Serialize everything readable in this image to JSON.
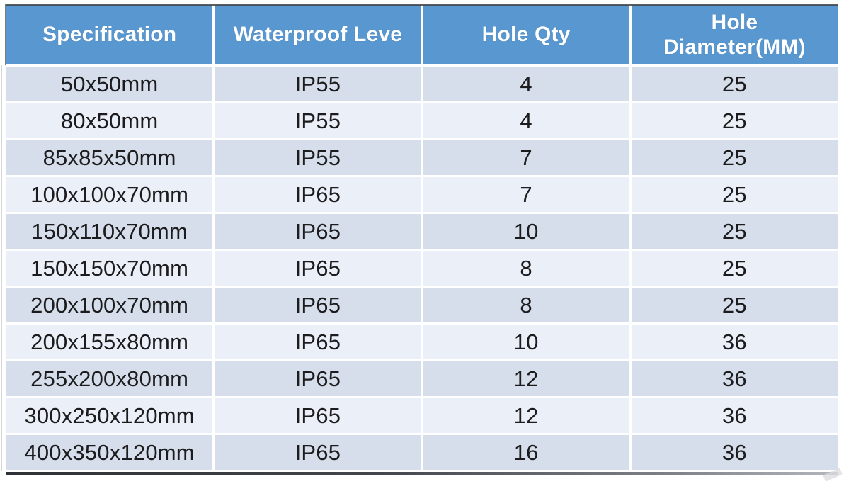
{
  "table": {
    "columns": [
      {
        "label": "Specification"
      },
      {
        "label": "Waterproof Leve"
      },
      {
        "label": "Hole Qty"
      },
      {
        "label": "Hole\nDiameter(MM)"
      }
    ],
    "rows": [
      {
        "spec": "50x50mm",
        "level": "IP55",
        "qty": "4",
        "diameter": "25"
      },
      {
        "spec": "80x50mm",
        "level": "IP55",
        "qty": "4",
        "diameter": "25"
      },
      {
        "spec": "85x85x50mm",
        "level": "IP55",
        "qty": "7",
        "diameter": "25"
      },
      {
        "spec": "100x100x70mm",
        "level": "IP65",
        "qty": "7",
        "diameter": "25"
      },
      {
        "spec": "150x110x70mm",
        "level": "IP65",
        "qty": "10",
        "diameter": "25"
      },
      {
        "spec": "150x150x70mm",
        "level": "IP65",
        "qty": "8",
        "diameter": "25"
      },
      {
        "spec": "200x100x70mm",
        "level": "IP65",
        "qty": "8",
        "diameter": "25"
      },
      {
        "spec": "200x155x80mm",
        "level": "IP65",
        "qty": "10",
        "diameter": "36"
      },
      {
        "spec": "255x200x80mm",
        "level": "IP65",
        "qty": "12",
        "diameter": "36"
      },
      {
        "spec": "300x250x120mm",
        "level": "IP65",
        "qty": "12",
        "diameter": "36"
      },
      {
        "spec": "400x350x120mm",
        "level": "IP65",
        "qty": "16",
        "diameter": "36"
      }
    ]
  },
  "colors": {
    "header_bg": "#5897d0",
    "header_text": "#ffffff",
    "row_dark": "#d5deea",
    "row_light": "#ebeff7",
    "cell_text": "#1c1c1e",
    "edge_dark": "#3f4347"
  }
}
